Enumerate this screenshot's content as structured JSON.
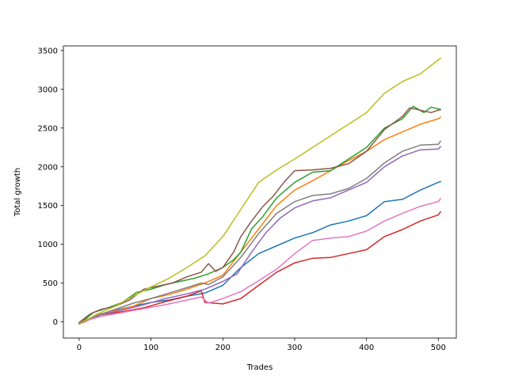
{
  "chart_data": {
    "type": "line",
    "title": "",
    "xlabel": "Trades",
    "ylabel": "Total growth",
    "xlim": [
      -22,
      525
    ],
    "ylim": [
      -210,
      3560
    ],
    "x_ticks": [
      0,
      100,
      200,
      300,
      400,
      500
    ],
    "y_ticks": [
      0,
      500,
      1000,
      1500,
      2000,
      2500,
      3000,
      3500
    ],
    "grid": false,
    "legend": "none",
    "series": [
      {
        "color": "#1f77b4",
        "points": [
          [
            0,
            -10
          ],
          [
            25,
            80
          ],
          [
            50,
            150
          ],
          [
            75,
            200
          ],
          [
            100,
            250
          ],
          [
            125,
            280
          ],
          [
            150,
            330
          ],
          [
            175,
            370
          ],
          [
            200,
            470
          ],
          [
            225,
            700
          ],
          [
            250,
            880
          ],
          [
            275,
            980
          ],
          [
            300,
            1080
          ],
          [
            325,
            1150
          ],
          [
            350,
            1250
          ],
          [
            375,
            1300
          ],
          [
            400,
            1370
          ],
          [
            425,
            1550
          ],
          [
            450,
            1580
          ],
          [
            475,
            1700
          ],
          [
            500,
            1800
          ],
          [
            503,
            1810
          ]
        ]
      },
      {
        "color": "#ff7f0e",
        "points": [
          [
            0,
            -20
          ],
          [
            25,
            90
          ],
          [
            50,
            140
          ],
          [
            75,
            200
          ],
          [
            100,
            300
          ],
          [
            125,
            350
          ],
          [
            150,
            420
          ],
          [
            175,
            500
          ],
          [
            200,
            600
          ],
          [
            225,
            900
          ],
          [
            250,
            1200
          ],
          [
            275,
            1500
          ],
          [
            300,
            1700
          ],
          [
            325,
            1820
          ],
          [
            350,
            1950
          ],
          [
            375,
            2080
          ],
          [
            400,
            2200
          ],
          [
            425,
            2350
          ],
          [
            450,
            2450
          ],
          [
            475,
            2550
          ],
          [
            500,
            2620
          ],
          [
            503,
            2640
          ]
        ]
      },
      {
        "color": "#2ca02c",
        "points": [
          [
            0,
            -30
          ],
          [
            20,
            120
          ],
          [
            40,
            180
          ],
          [
            60,
            250
          ],
          [
            80,
            380
          ],
          [
            100,
            420
          ],
          [
            120,
            480
          ],
          [
            140,
            520
          ],
          [
            160,
            560
          ],
          [
            180,
            620
          ],
          [
            200,
            700
          ],
          [
            215,
            800
          ],
          [
            225,
            900
          ],
          [
            240,
            1200
          ],
          [
            255,
            1350
          ],
          [
            275,
            1600
          ],
          [
            300,
            1800
          ],
          [
            325,
            1930
          ],
          [
            350,
            1950
          ],
          [
            375,
            2100
          ],
          [
            400,
            2250
          ],
          [
            425,
            2500
          ],
          [
            450,
            2620
          ],
          [
            465,
            2780
          ],
          [
            480,
            2700
          ],
          [
            490,
            2770
          ],
          [
            503,
            2740
          ]
        ]
      },
      {
        "color": "#d62728",
        "points": [
          [
            0,
            -30
          ],
          [
            30,
            90
          ],
          [
            60,
            130
          ],
          [
            90,
            180
          ],
          [
            120,
            260
          ],
          [
            150,
            330
          ],
          [
            170,
            400
          ],
          [
            175,
            250
          ],
          [
            200,
            230
          ],
          [
            225,
            300
          ],
          [
            250,
            470
          ],
          [
            275,
            640
          ],
          [
            300,
            760
          ],
          [
            325,
            820
          ],
          [
            350,
            830
          ],
          [
            375,
            880
          ],
          [
            400,
            930
          ],
          [
            425,
            1100
          ],
          [
            450,
            1190
          ],
          [
            475,
            1300
          ],
          [
            500,
            1380
          ],
          [
            503,
            1420
          ]
        ]
      },
      {
        "color": "#9467bd",
        "points": [
          [
            0,
            -20
          ],
          [
            30,
            90
          ],
          [
            60,
            150
          ],
          [
            90,
            220
          ],
          [
            120,
            300
          ],
          [
            150,
            360
          ],
          [
            175,
            420
          ],
          [
            200,
            520
          ],
          [
            220,
            620
          ],
          [
            240,
            900
          ],
          [
            260,
            1150
          ],
          [
            280,
            1340
          ],
          [
            300,
            1470
          ],
          [
            325,
            1560
          ],
          [
            350,
            1600
          ],
          [
            375,
            1700
          ],
          [
            400,
            1800
          ],
          [
            425,
            2000
          ],
          [
            450,
            2140
          ],
          [
            475,
            2220
          ],
          [
            500,
            2230
          ],
          [
            503,
            2260
          ]
        ]
      },
      {
        "color": "#8c564b",
        "points": [
          [
            0,
            -10
          ],
          [
            15,
            100
          ],
          [
            30,
            160
          ],
          [
            50,
            200
          ],
          [
            70,
            280
          ],
          [
            90,
            420
          ],
          [
            110,
            460
          ],
          [
            130,
            500
          ],
          [
            150,
            580
          ],
          [
            170,
            640
          ],
          [
            180,
            750
          ],
          [
            190,
            650
          ],
          [
            200,
            700
          ],
          [
            215,
            900
          ],
          [
            225,
            1100
          ],
          [
            240,
            1300
          ],
          [
            255,
            1480
          ],
          [
            270,
            1620
          ],
          [
            285,
            1800
          ],
          [
            300,
            1950
          ],
          [
            325,
            1960
          ],
          [
            350,
            1980
          ],
          [
            375,
            2040
          ],
          [
            400,
            2200
          ],
          [
            425,
            2480
          ],
          [
            450,
            2650
          ],
          [
            460,
            2760
          ],
          [
            475,
            2730
          ],
          [
            490,
            2700
          ],
          [
            503,
            2740
          ]
        ]
      },
      {
        "color": "#e377c2",
        "points": [
          [
            0,
            -10
          ],
          [
            30,
            70
          ],
          [
            60,
            120
          ],
          [
            90,
            170
          ],
          [
            120,
            220
          ],
          [
            150,
            280
          ],
          [
            170,
            320
          ],
          [
            180,
            240
          ],
          [
            200,
            300
          ],
          [
            225,
            390
          ],
          [
            250,
            530
          ],
          [
            275,
            680
          ],
          [
            300,
            880
          ],
          [
            325,
            1050
          ],
          [
            350,
            1080
          ],
          [
            375,
            1100
          ],
          [
            400,
            1170
          ],
          [
            425,
            1300
          ],
          [
            450,
            1400
          ],
          [
            475,
            1490
          ],
          [
            500,
            1550
          ],
          [
            503,
            1590
          ]
        ]
      },
      {
        "color": "#7f7f7f",
        "points": [
          [
            0,
            -10
          ],
          [
            25,
            80
          ],
          [
            50,
            160
          ],
          [
            75,
            240
          ],
          [
            100,
            300
          ],
          [
            125,
            370
          ],
          [
            150,
            440
          ],
          [
            170,
            500
          ],
          [
            180,
            480
          ],
          [
            200,
            580
          ],
          [
            225,
            830
          ],
          [
            250,
            1140
          ],
          [
            275,
            1400
          ],
          [
            300,
            1550
          ],
          [
            325,
            1630
          ],
          [
            350,
            1650
          ],
          [
            375,
            1720
          ],
          [
            400,
            1850
          ],
          [
            425,
            2050
          ],
          [
            450,
            2200
          ],
          [
            475,
            2280
          ],
          [
            500,
            2290
          ],
          [
            503,
            2330
          ]
        ]
      },
      {
        "color": "#bcbd22",
        "points": [
          [
            0,
            -30
          ],
          [
            25,
            100
          ],
          [
            50,
            200
          ],
          [
            75,
            330
          ],
          [
            100,
            450
          ],
          [
            125,
            560
          ],
          [
            150,
            700
          ],
          [
            175,
            850
          ],
          [
            200,
            1100
          ],
          [
            225,
            1450
          ],
          [
            250,
            1800
          ],
          [
            275,
            1960
          ],
          [
            300,
            2100
          ],
          [
            325,
            2250
          ],
          [
            350,
            2400
          ],
          [
            375,
            2550
          ],
          [
            400,
            2700
          ],
          [
            425,
            2950
          ],
          [
            450,
            3100
          ],
          [
            475,
            3200
          ],
          [
            500,
            3380
          ],
          [
            503,
            3400
          ]
        ]
      }
    ]
  }
}
